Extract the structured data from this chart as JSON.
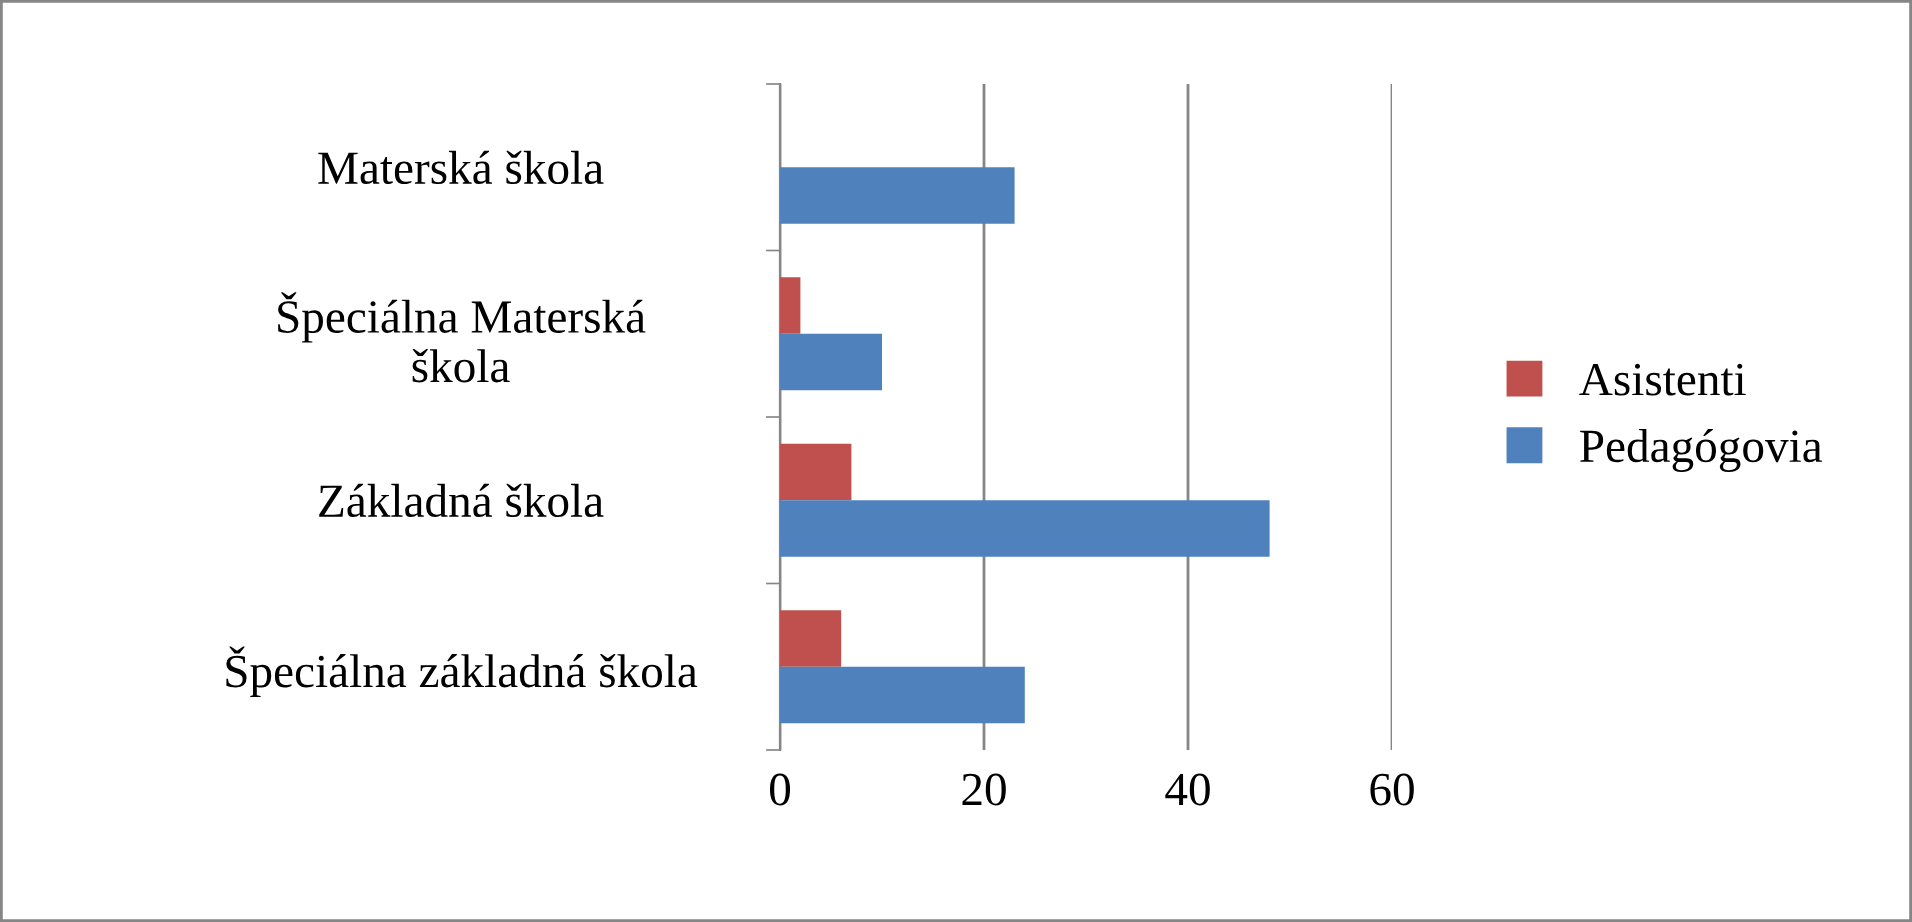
{
  "chart_data": {
    "type": "bar",
    "orientation": "horizontal",
    "categories": [
      "Materská škola",
      "Špeciálna Materská\nškola",
      "Základná škola",
      "Špeciálna základná škola"
    ],
    "series": [
      {
        "name": "Asistenti",
        "color": "#c0504d",
        "values": [
          0,
          2,
          7,
          6
        ]
      },
      {
        "name": "Pedagógovia",
        "color": "#4f81bd",
        "values": [
          23,
          10,
          48,
          24
        ]
      }
    ],
    "xlim": [
      0,
      60
    ],
    "xticks": [
      0,
      20,
      40,
      60
    ],
    "grid": "x",
    "legend": "right"
  }
}
